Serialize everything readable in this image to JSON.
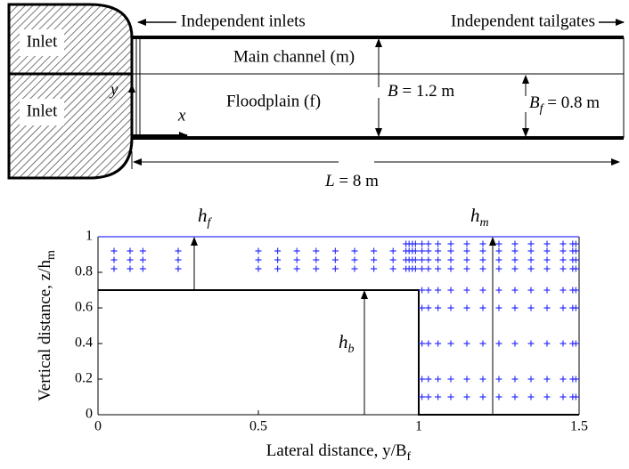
{
  "diagram": {
    "inlet_top": "Inlet",
    "inlet_bottom": "Inlet",
    "independent_inlets": "Independent inlets",
    "independent_tailgates": "Independent tailgates",
    "main_channel": "Main channel (m)",
    "floodplain": "Floodplain (f)",
    "width": {
      "symbol": "B",
      "text": " = 1.2 m"
    },
    "floodplain_width": {
      "symbol": "B",
      "sub": "f",
      "text": " = 0.8 m"
    },
    "length": {
      "symbol": "L",
      "text": " = 8 m"
    },
    "x_axis": "x",
    "y_axis": "y"
  },
  "chart_data": {
    "type": "scatter",
    "xlabel": {
      "text": "Lateral distance,  y/B",
      "sub": "f"
    },
    "ylabel": {
      "text": "Vertical distance,  z/h",
      "sub": "m"
    },
    "xlim": [
      0,
      1.5
    ],
    "ylim": [
      0,
      1
    ],
    "xticks": [
      0,
      0.5,
      1,
      1.5
    ],
    "yticks": [
      0,
      0.2,
      0.4,
      0.6,
      0.8,
      1
    ],
    "color": "#3333ff",
    "bed": {
      "x": [
        0,
        1,
        1,
        1.5
      ],
      "y": [
        0.7,
        0.7,
        0,
        0
      ]
    },
    "water_surface": 1,
    "annotations": [
      {
        "text": "h",
        "sub": "f"
      },
      {
        "text": "h",
        "sub": "m"
      },
      {
        "text": "h",
        "sub": "b"
      }
    ],
    "points": [
      {
        "y": 0.92,
        "x": [
          0.05,
          0.1,
          0.14,
          0.25,
          0.5,
          0.56,
          0.62,
          0.68,
          0.74,
          0.8,
          0.86,
          0.92,
          0.96,
          0.97,
          0.98,
          0.99,
          1.01,
          1.03,
          1.06,
          1.1,
          1.15,
          1.2,
          1.25,
          1.3,
          1.35,
          1.4,
          1.45,
          1.48,
          1.49
        ]
      },
      {
        "y": 0.87,
        "x": [
          0.05,
          0.1,
          0.14,
          0.25,
          0.5,
          0.56,
          0.62,
          0.68,
          0.74,
          0.8,
          0.86,
          0.92,
          0.96,
          0.97,
          0.98,
          0.99,
          1.01,
          1.03,
          1.06,
          1.1,
          1.15,
          1.2,
          1.25,
          1.3,
          1.35,
          1.4,
          1.45,
          1.48,
          1.49
        ]
      },
      {
        "y": 0.82,
        "x": [
          0.05,
          0.1,
          0.14,
          0.25,
          0.5,
          0.56,
          0.62,
          0.68,
          0.74,
          0.8,
          0.86,
          0.92,
          0.96,
          0.97,
          0.98,
          0.99,
          1.01,
          1.03,
          1.06,
          1.1,
          1.15,
          1.2,
          1.25,
          1.3,
          1.35,
          1.4,
          1.45,
          1.48,
          1.49
        ]
      },
      {
        "y": 0.96,
        "x": [
          0.96,
          0.97,
          0.98,
          0.99,
          1.01,
          1.03,
          1.06,
          1.1,
          1.15,
          1.2,
          1.25,
          1.3,
          1.35,
          1.4,
          1.45,
          1.48,
          1.49
        ]
      },
      {
        "y": 0.7,
        "x": [
          1.01,
          1.03,
          1.06,
          1.1,
          1.15,
          1.2,
          1.25,
          1.3,
          1.35,
          1.4,
          1.45,
          1.48,
          1.49
        ]
      },
      {
        "y": 0.6,
        "x": [
          1.01,
          1.03,
          1.06,
          1.1,
          1.15,
          1.2,
          1.25,
          1.3,
          1.35,
          1.4,
          1.45,
          1.48,
          1.49
        ]
      },
      {
        "y": 0.4,
        "x": [
          1.01,
          1.03,
          1.06,
          1.1,
          1.15,
          1.2,
          1.25,
          1.3,
          1.35,
          1.4,
          1.45,
          1.48,
          1.49
        ]
      },
      {
        "y": 0.2,
        "x": [
          1.01,
          1.03,
          1.06,
          1.1,
          1.15,
          1.2,
          1.25,
          1.3,
          1.35,
          1.4,
          1.45,
          1.48,
          1.49
        ]
      },
      {
        "y": 0.1,
        "x": [
          1.01,
          1.03,
          1.06,
          1.1,
          1.15,
          1.2,
          1.25,
          1.3,
          1.35,
          1.4,
          1.45,
          1.48,
          1.49
        ]
      }
    ]
  }
}
